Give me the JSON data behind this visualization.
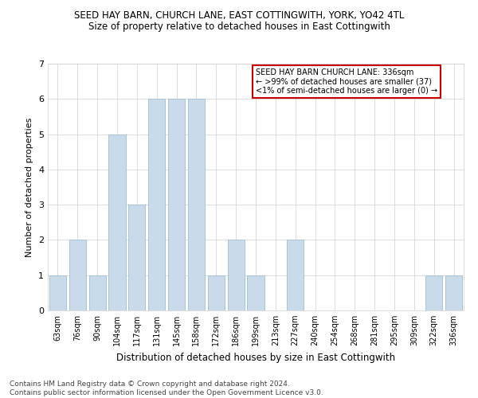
{
  "title": "SEED HAY BARN, CHURCH LANE, EAST COTTINGWITH, YORK, YO42 4TL",
  "subtitle": "Size of property relative to detached houses in East Cottingwith",
  "xlabel": "Distribution of detached houses by size in East Cottingwith",
  "ylabel": "Number of detached properties",
  "categories": [
    "63sqm",
    "76sqm",
    "90sqm",
    "104sqm",
    "117sqm",
    "131sqm",
    "145sqm",
    "158sqm",
    "172sqm",
    "186sqm",
    "199sqm",
    "213sqm",
    "227sqm",
    "240sqm",
    "254sqm",
    "268sqm",
    "281sqm",
    "295sqm",
    "309sqm",
    "322sqm",
    "336sqm"
  ],
  "values": [
    1,
    2,
    1,
    5,
    3,
    6,
    6,
    6,
    1,
    2,
    1,
    0,
    2,
    0,
    0,
    0,
    0,
    0,
    0,
    1,
    1
  ],
  "bar_color": "#c9daea",
  "bar_edgecolor": "#a8c4d8",
  "box_text_line1": "SEED HAY BARN CHURCH LANE: 336sqm",
  "box_text_line2": "← >99% of detached houses are smaller (37)",
  "box_text_line3": "<1% of semi-detached houses are larger (0) →",
  "box_color": "#ffffff",
  "box_edgecolor": "#cc0000",
  "ylim": [
    0,
    7
  ],
  "yticks": [
    0,
    1,
    2,
    3,
    4,
    5,
    6,
    7
  ],
  "footer_line1": "Contains HM Land Registry data © Crown copyright and database right 2024.",
  "footer_line2": "Contains public sector information licensed under the Open Government Licence v3.0.",
  "bg_color": "#ffffff",
  "grid_color": "#d0d0d0",
  "title_fontsize": 8.5,
  "subtitle_fontsize": 8.5,
  "axis_label_fontsize": 8,
  "tick_fontsize": 7,
  "footer_fontsize": 6.5
}
